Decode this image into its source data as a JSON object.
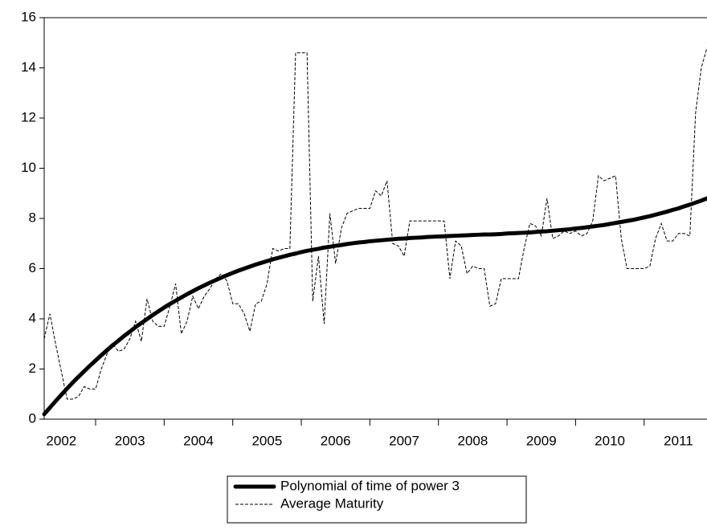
{
  "chart_data": {
    "type": "line",
    "categories": [
      null,
      null,
      null,
      "2002",
      null,
      null,
      null,
      null,
      null,
      null,
      null,
      null,
      null,
      null,
      null,
      "2003",
      null,
      null,
      null,
      null,
      null,
      null,
      null,
      null,
      null,
      null,
      null,
      "2004",
      null,
      null,
      null,
      null,
      null,
      null,
      null,
      null,
      null,
      null,
      null,
      "2005",
      null,
      null,
      null,
      null,
      null,
      null,
      null,
      null,
      null,
      null,
      null,
      "2006",
      null,
      null,
      null,
      null,
      null,
      null,
      null,
      null,
      null,
      null,
      null,
      "2007",
      null,
      null,
      null,
      null,
      null,
      null,
      null,
      null,
      null,
      null,
      null,
      "2008",
      null,
      null,
      null,
      null,
      null,
      null,
      null,
      null,
      null,
      null,
      null,
      "2009",
      null,
      null,
      null,
      null,
      null,
      null,
      null,
      null,
      null,
      null,
      null,
      "2010",
      null,
      null,
      null,
      null,
      null,
      null,
      null,
      null,
      null,
      null,
      null,
      "2011",
      null,
      null,
      null,
      null,
      null
    ],
    "series": [
      {
        "name": "Polynomial of time of power 3",
        "color": "#000000",
        "style": "thick",
        "values": [
          0.2,
          0.46,
          0.72,
          0.97,
          1.22,
          1.46,
          1.69,
          1.91,
          2.13,
          2.34,
          2.55,
          2.75,
          2.95,
          3.13,
          3.32,
          3.49,
          3.67,
          3.83,
          3.99,
          4.15,
          4.3,
          4.45,
          4.59,
          4.72,
          4.85,
          4.98,
          5.1,
          5.22,
          5.33,
          5.44,
          5.54,
          5.64,
          5.74,
          5.83,
          5.92,
          6.0,
          6.08,
          6.16,
          6.23,
          6.3,
          6.37,
          6.43,
          6.49,
          6.55,
          6.6,
          6.66,
          6.71,
          6.75,
          6.79,
          6.84,
          6.87,
          6.91,
          6.94,
          6.98,
          7.01,
          7.04,
          7.06,
          7.09,
          7.11,
          7.13,
          7.15,
          7.17,
          7.19,
          7.2,
          7.22,
          7.23,
          7.24,
          7.26,
          7.27,
          7.28,
          7.29,
          7.3,
          7.31,
          7.32,
          7.33,
          7.34,
          7.35,
          7.36,
          7.36,
          7.37,
          7.38,
          7.4,
          7.41,
          7.42,
          7.43,
          7.44,
          7.46,
          7.48,
          7.49,
          7.51,
          7.53,
          7.55,
          7.57,
          7.6,
          7.62,
          7.65,
          7.68,
          7.71,
          7.74,
          7.78,
          7.82,
          7.86,
          7.9,
          7.94,
          7.99,
          8.04,
          8.09,
          8.15,
          8.21,
          8.27,
          8.34,
          8.4,
          8.48,
          8.55,
          8.63,
          8.71,
          8.8
        ]
      },
      {
        "name": "Average Maturity",
        "color": "#000000",
        "style": "dashed",
        "values": [
          3.2,
          4.2,
          3.0,
          1.9,
          0.8,
          0.8,
          0.9,
          1.3,
          1.2,
          1.2,
          2.0,
          2.6,
          3.0,
          2.7,
          2.8,
          3.2,
          3.9,
          3.1,
          4.8,
          3.9,
          3.7,
          3.7,
          4.5,
          5.4,
          3.4,
          3.9,
          4.9,
          4.4,
          4.9,
          5.2,
          5.6,
          5.8,
          5.5,
          4.6,
          4.6,
          4.2,
          3.5,
          4.6,
          4.7,
          5.4,
          6.8,
          6.7,
          6.8,
          6.8,
          14.6,
          14.6,
          14.6,
          4.7,
          6.5,
          3.8,
          8.2,
          6.2,
          7.6,
          8.2,
          8.3,
          8.4,
          8.4,
          8.4,
          9.1,
          8.9,
          9.5,
          7.0,
          6.9,
          6.5,
          7.9,
          7.9,
          7.9,
          7.9,
          7.9,
          7.9,
          7.9,
          5.6,
          7.1,
          6.9,
          5.8,
          6.1,
          6.0,
          6.0,
          4.5,
          4.6,
          5.6,
          5.6,
          5.6,
          5.6,
          6.8,
          7.8,
          7.7,
          7.3,
          8.8,
          7.2,
          7.3,
          7.5,
          7.4,
          7.5,
          7.3,
          7.4,
          7.9,
          9.7,
          9.5,
          9.6,
          9.7,
          7.2,
          6.0,
          6.0,
          6.0,
          6.0,
          6.1,
          7.2,
          7.8,
          7.1,
          7.1,
          7.4,
          7.4,
          7.3,
          12.2,
          14.0,
          14.8
        ]
      }
    ],
    "ylim": [
      0,
      16
    ],
    "yticks": [
      0,
      2,
      4,
      6,
      8,
      10,
      12,
      14,
      16
    ],
    "legend": "bottom"
  }
}
